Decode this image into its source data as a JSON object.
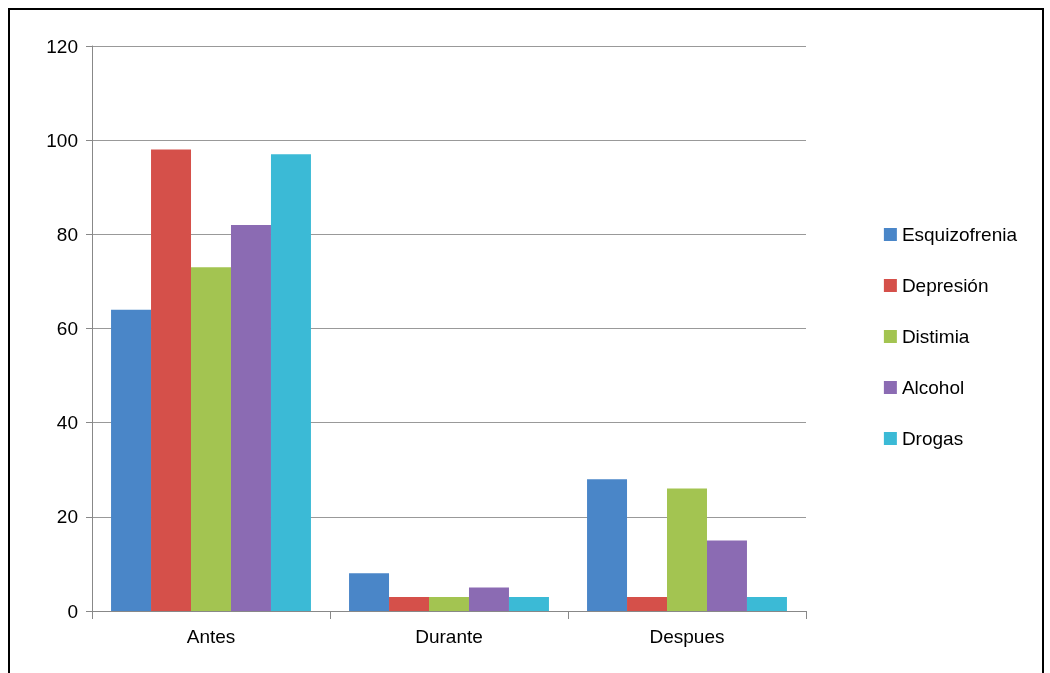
{
  "chart_data": {
    "type": "bar",
    "categories": [
      "Antes",
      "Durante",
      "Despues"
    ],
    "series": [
      {
        "name": "Esquizofrenia",
        "color": "#4a86c8",
        "values": [
          64,
          8,
          28
        ]
      },
      {
        "name": "Depresión",
        "color": "#d5504a",
        "values": [
          98,
          3,
          3
        ]
      },
      {
        "name": "Distimia",
        "color": "#a3c451",
        "values": [
          73,
          3,
          26
        ]
      },
      {
        "name": "Alcohol",
        "color": "#8b6bb3",
        "values": [
          82,
          5,
          15
        ]
      },
      {
        "name": "Drogas",
        "color": "#3bbad6",
        "values": [
          97,
          3,
          3
        ]
      }
    ],
    "ylim": [
      0,
      120
    ],
    "yticks": [
      0,
      20,
      40,
      60,
      80,
      100,
      120
    ],
    "grid": "y",
    "legend": "right"
  }
}
